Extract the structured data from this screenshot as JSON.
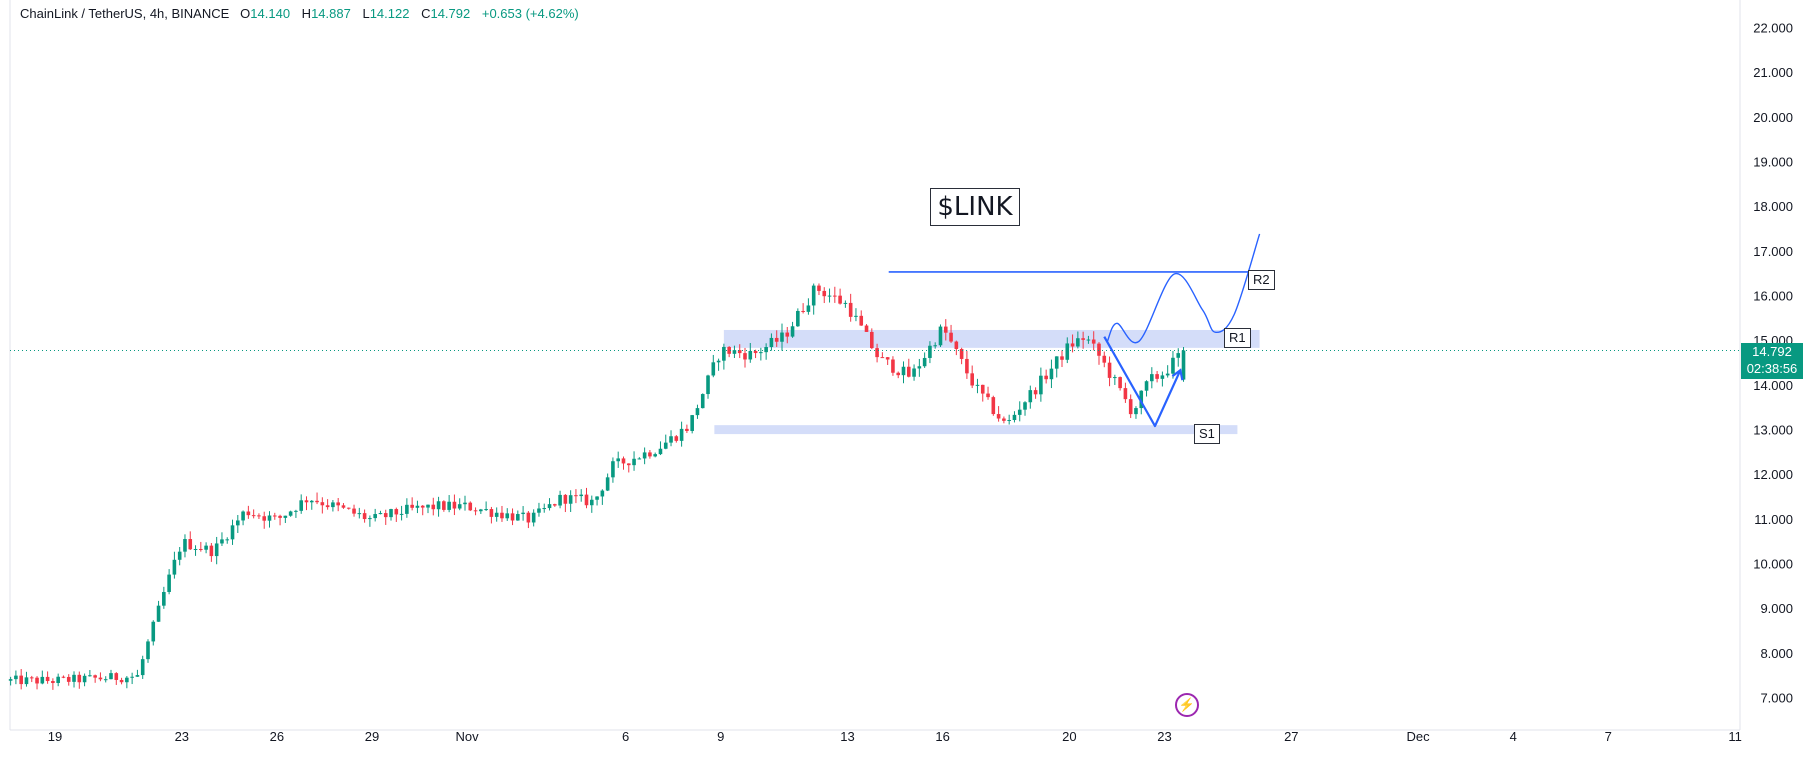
{
  "header": {
    "symbol": "ChainLink / TetherUS, 4h, BINANCE",
    "o_label": "O",
    "o_value": "14.140",
    "h_label": "H",
    "h_value": "14.887",
    "l_label": "L",
    "l_value": "14.122",
    "c_label": "C",
    "c_value": "14.792",
    "change": "+0.653 (+4.62%)"
  },
  "chart_title": "$LINK",
  "current_price": "14.792",
  "countdown": "02:38:56",
  "colors": {
    "up": "#089981",
    "down": "#f23645",
    "drawing": "#2962ff",
    "zone": "#c5d2f7"
  },
  "icons": {
    "flash": "flash-icon"
  },
  "levels": [
    {
      "label": "R2",
      "price": 16.55
    },
    {
      "label": "R1",
      "price": 15.05
    },
    {
      "label": "S1",
      "price": 13.0
    }
  ],
  "chart_data": {
    "type": "candlestick",
    "ylim": [
      6.7,
      22.3
    ],
    "y_ticks": [
      "7.000",
      "8.000",
      "9.000",
      "10.000",
      "11.000",
      "12.000",
      "13.000",
      "14.000",
      "15.000",
      "16.000",
      "17.000",
      "18.000",
      "19.000",
      "20.000",
      "21.000",
      "22.000"
    ],
    "x_ticks": [
      {
        "label": "19",
        "day": 0
      },
      {
        "label": "23",
        "day": 4
      },
      {
        "label": "26",
        "day": 7
      },
      {
        "label": "29",
        "day": 10
      },
      {
        "label": "Nov",
        "day": 13
      },
      {
        "label": "6",
        "day": 18
      },
      {
        "label": "9",
        "day": 21
      },
      {
        "label": "13",
        "day": 25
      },
      {
        "label": "16",
        "day": 28
      },
      {
        "label": "20",
        "day": 32
      },
      {
        "label": "23",
        "day": 35
      },
      {
        "label": "27",
        "day": 39
      },
      {
        "label": "Dec",
        "day": 43
      },
      {
        "label": "4",
        "day": 46
      },
      {
        "label": "7",
        "day": 49
      },
      {
        "label": "11",
        "day": 53
      }
    ],
    "close_path": [
      [
        -1.4,
        7.4
      ],
      [
        0,
        7.4
      ],
      [
        2.6,
        7.5
      ],
      [
        3.5,
        9.5
      ],
      [
        4,
        10.5
      ],
      [
        5,
        10.3
      ],
      [
        6,
        11.2
      ],
      [
        7,
        11.0
      ],
      [
        8,
        11.5
      ],
      [
        10,
        11.0
      ],
      [
        11,
        11.2
      ],
      [
        12,
        11.3
      ],
      [
        13,
        11.3
      ],
      [
        15,
        11.0
      ],
      [
        16,
        11.5
      ],
      [
        17,
        11.4
      ],
      [
        17.6,
        12.2
      ],
      [
        19,
        12.6
      ],
      [
        20,
        13.1
      ],
      [
        21,
        14.8
      ],
      [
        22,
        14.7
      ],
      [
        23,
        15.1
      ],
      [
        24,
        16.2
      ],
      [
        25,
        15.8
      ],
      [
        26,
        14.6
      ],
      [
        27,
        14.2
      ],
      [
        28,
        15.3
      ],
      [
        29,
        14.0
      ],
      [
        30,
        13.1
      ],
      [
        30.5,
        13.6
      ],
      [
        31,
        14.0
      ],
      [
        32,
        14.9
      ],
      [
        32.5,
        15.1
      ],
      [
        33,
        14.6
      ],
      [
        34,
        13.4
      ],
      [
        34.5,
        14.1
      ],
      [
        35,
        14.3
      ],
      [
        35.6,
        14.792
      ]
    ],
    "drawings": {
      "r2_line": {
        "x": [
          26.3,
          38.2
        ],
        "price": 16.55
      },
      "r1_zone": {
        "x": [
          21.1,
          38.0
        ],
        "price_low": 14.85,
        "price_high": 15.25
      },
      "s1_zone": {
        "x": [
          20.8,
          37.3
        ],
        "price_low": 12.92,
        "price_high": 13.12
      },
      "down_up_path": [
        [
          33.1,
          15.1
        ],
        [
          34.7,
          13.1
        ],
        [
          35.5,
          14.35
        ]
      ],
      "projection_path": [
        [
          33.2,
          15.0
        ],
        [
          33.5,
          15.4
        ],
        [
          34.2,
          15.0
        ],
        [
          35.3,
          16.5
        ],
        [
          36.2,
          15.7
        ],
        [
          36.6,
          15.2
        ],
        [
          37.2,
          15.6
        ],
        [
          38.0,
          17.4
        ]
      ]
    }
  }
}
